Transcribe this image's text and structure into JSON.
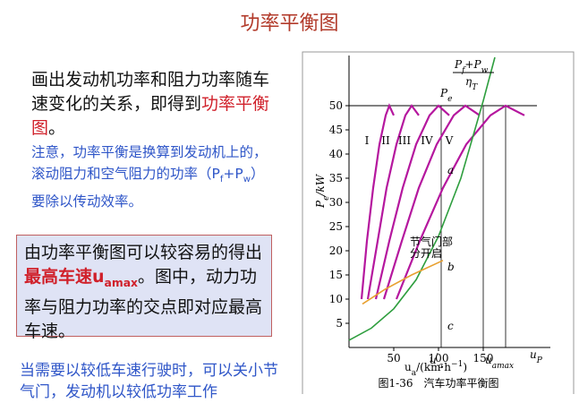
{
  "title": "功率平衡图",
  "intro": [
    "画出发动机功率和阻力功率随车速变化的关系，即得到",
    "功率平衡图",
    "。"
  ],
  "note": [
    "注意，功率平衡是换算到发动机上的，滚动阻力和空气阻力的功率（P",
    "f",
    "+P",
    "w",
    "）要除以传动效率。"
  ],
  "box": [
    "由功率平衡图可以较容易的得出",
    "最高车速u",
    "amax",
    "。图中，动力功率与阻力功率的交点即对应最高车速。"
  ],
  "bottom": "当需要以较低车速行驶时，可以关小节气门，发动机以较低功率工作",
  "chart_data": {
    "type": "line",
    "caption": "图1-36　汽车功率平衡图",
    "y_label": [
      "P",
      "e",
      "/kW"
    ],
    "x_label": [
      "u",
      "a",
      "/(km·h",
      "−1",
      ")"
    ],
    "xlim": [
      0,
      225
    ],
    "ylim": [
      0,
      60
    ],
    "xticks": [
      50,
      100,
      150
    ],
    "yticks": [
      5,
      10,
      15,
      20,
      25,
      30,
      35,
      40,
      45,
      50
    ],
    "series": [
      {
        "name": "I",
        "color": "#b5179e",
        "x": [
          14,
          20,
          27,
          34,
          41,
          45,
          50
        ],
        "values": [
          10,
          22,
          33,
          42,
          48,
          50,
          48
        ]
      },
      {
        "name": "II",
        "color": "#b5179e",
        "x": [
          21,
          32,
          42,
          53,
          63,
          70,
          78
        ],
        "values": [
          10,
          22,
          33,
          42,
          48,
          50,
          48
        ]
      },
      {
        "name": "III",
        "color": "#b5179e",
        "x": [
          30,
          45,
          60,
          75,
          90,
          100,
          112
        ],
        "values": [
          10,
          22,
          33,
          42,
          48,
          50,
          48
        ]
      },
      {
        "name": "IV",
        "color": "#b5179e",
        "x": [
          39,
          59,
          78,
          98,
          117,
          130,
          146
        ],
        "values": [
          10,
          22,
          33,
          42,
          48,
          50,
          48
        ]
      },
      {
        "name": "V",
        "color": "#b5179e",
        "x": [
          53,
          79,
          105,
          131,
          158,
          175,
          196
        ],
        "values": [
          10,
          22,
          33,
          42,
          48,
          50,
          48
        ]
      },
      {
        "name": [
          "P",
          "f",
          "+P",
          "w",
          "η",
          "T"
        ],
        "color": "#2e9e3e",
        "x": [
          0,
          25,
          50,
          75,
          100,
          125,
          150,
          163
        ],
        "values": [
          1.5,
          4,
          8,
          14,
          23,
          35,
          51,
          60
        ]
      },
      {
        "name": [
          "节气门部",
          "分开启"
        ],
        "color": "#e8a030",
        "x": [
          15,
          40,
          70,
          105
        ],
        "values": [
          9,
          12,
          15,
          18
        ]
      }
    ],
    "pe_line": {
      "label": [
        "P",
        "e"
      ],
      "value": 50
    },
    "markers": [
      {
        "label": [
          "u",
          "′",
          "a"
        ],
        "x": 103
      },
      {
        "label": [
          "u",
          "amax"
        ],
        "x": 150
      },
      {
        "label": [
          "u",
          "P"
        ],
        "x": 175
      }
    ],
    "points": [
      "a",
      "b",
      "c"
    ]
  }
}
